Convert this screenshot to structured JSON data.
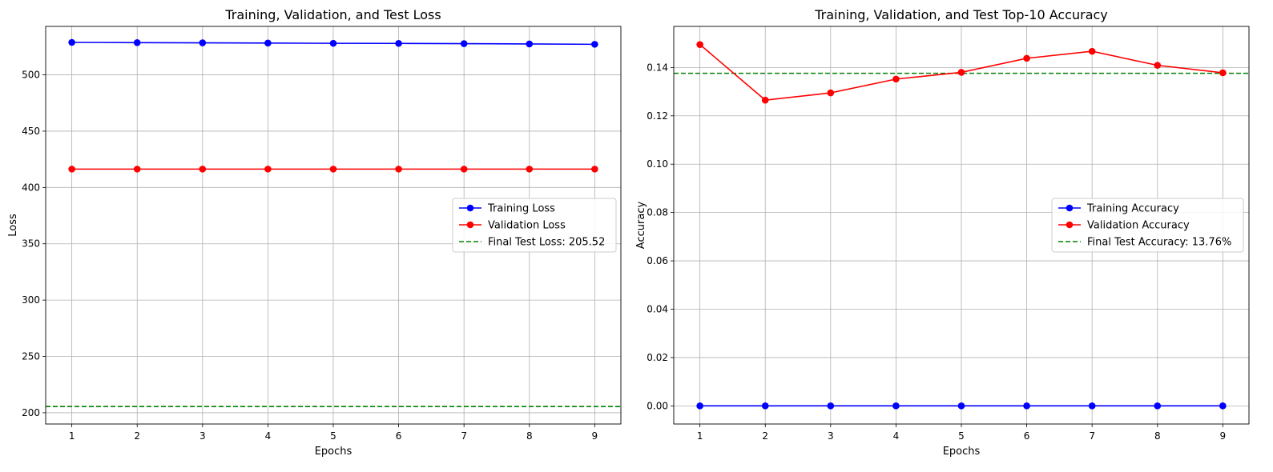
{
  "chart_data": [
    {
      "type": "line",
      "title": "Training, Validation, and Test Loss",
      "xlabel": "Epochs",
      "ylabel": "Loss",
      "x": [
        1,
        2,
        3,
        4,
        5,
        6,
        7,
        8,
        9
      ],
      "xticks": [
        "1",
        "2",
        "3",
        "4",
        "5",
        "6",
        "7",
        "8",
        "9"
      ],
      "xlim": [
        0.6,
        9.4
      ],
      "ylim": [
        190,
        543
      ],
      "yticks": [
        200,
        250,
        300,
        350,
        400,
        450,
        500
      ],
      "ytick_labels": [
        "200",
        "250",
        "300",
        "350",
        "400",
        "450",
        "500"
      ],
      "grid": true,
      "legend_position": "center-right",
      "series": [
        {
          "name": "Training Loss",
          "color": "#0000ff",
          "style": "solid-marker",
          "values": [
            528.8,
            528.6,
            528.4,
            528.2,
            528.0,
            527.9,
            527.7,
            527.4,
            527.1
          ]
        },
        {
          "name": "Validation Loss",
          "color": "#ff0000",
          "style": "solid-marker",
          "values": [
            416.3,
            416.3,
            416.3,
            416.3,
            416.3,
            416.3,
            416.3,
            416.3,
            416.3
          ]
        }
      ],
      "hlines": [
        {
          "name": "Final Test Loss: 205.52",
          "color": "#008000",
          "style": "dashed",
          "value": 205.52
        }
      ]
    },
    {
      "type": "line",
      "title": "Training, Validation, and Test Top-10 Accuracy",
      "xlabel": "Epochs",
      "ylabel": "Accuracy",
      "x": [
        1,
        2,
        3,
        4,
        5,
        6,
        7,
        8,
        9
      ],
      "xticks": [
        "1",
        "2",
        "3",
        "4",
        "5",
        "6",
        "7",
        "8",
        "9"
      ],
      "xlim": [
        0.6,
        9.4
      ],
      "ylim": [
        -0.0075,
        0.157
      ],
      "yticks": [
        0,
        0.02,
        0.04,
        0.06,
        0.08,
        0.1,
        0.12,
        0.14
      ],
      "ytick_labels": [
        "0.00",
        "0.02",
        "0.04",
        "0.06",
        "0.08",
        "0.10",
        "0.12",
        "0.14"
      ],
      "grid": true,
      "legend_position": "center-right",
      "series": [
        {
          "name": "Training Accuracy",
          "color": "#0000ff",
          "style": "solid-marker",
          "values": [
            0,
            0,
            0,
            0,
            0,
            0,
            0,
            0,
            0
          ]
        },
        {
          "name": "Validation Accuracy",
          "color": "#ff0000",
          "style": "solid-marker",
          "values": [
            0.1495,
            0.1265,
            0.1295,
            0.1352,
            0.138,
            0.1438,
            0.1467,
            0.1409,
            0.1378
          ]
        }
      ],
      "hlines": [
        {
          "name": "Final Test Accuracy: 13.76%",
          "color": "#008000",
          "style": "dashed",
          "value": 0.1376
        }
      ]
    }
  ]
}
